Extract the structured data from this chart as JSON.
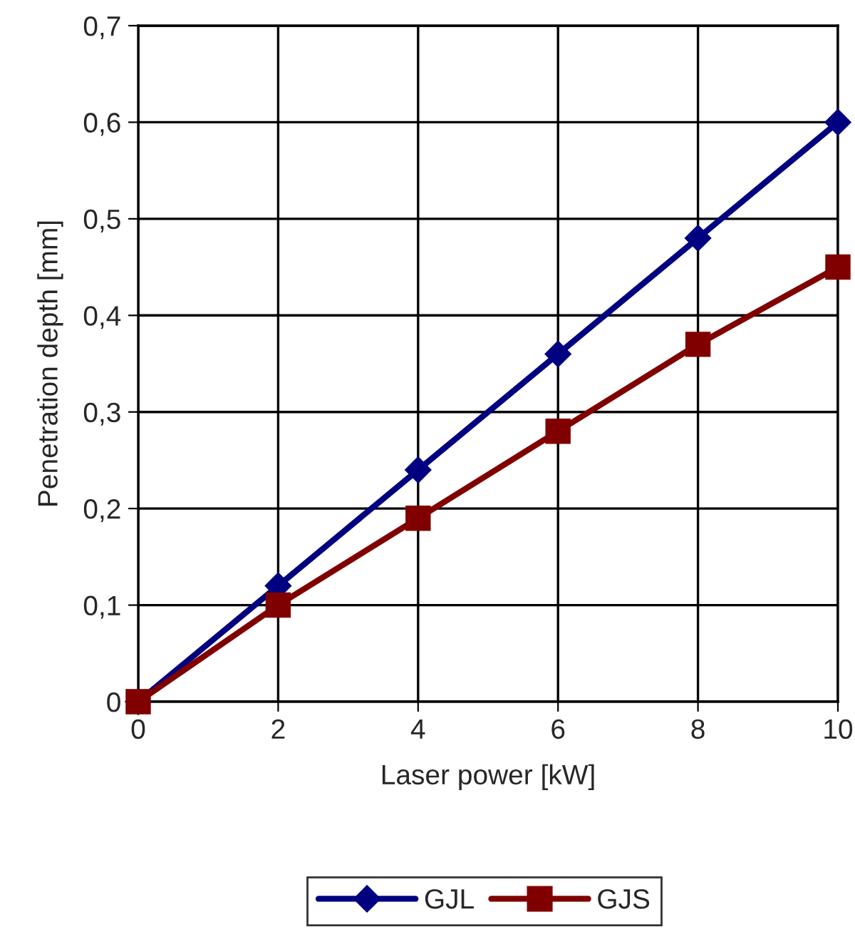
{
  "chart_data": {
    "type": "line",
    "xlabel": "Laser power [kW]",
    "ylabel": "Penetration depth [mm]",
    "x": [
      0,
      2,
      4,
      6,
      8,
      10
    ],
    "series": [
      {
        "name": "GJL",
        "color": "#000080",
        "marker": "diamond",
        "values": [
          0,
          0.12,
          0.24,
          0.36,
          0.48,
          0.6
        ]
      },
      {
        "name": "GJS",
        "color": "#800000",
        "marker": "square",
        "values": [
          0,
          0.1,
          0.19,
          0.28,
          0.37,
          0.45
        ]
      }
    ],
    "xlim": [
      0,
      10
    ],
    "xticks": [
      0,
      2,
      4,
      6,
      8,
      10
    ],
    "ylim": [
      0,
      0.7
    ],
    "yticks": [
      0,
      {
        "value": 0.1,
        "label": "0,1"
      },
      {
        "value": 0.2,
        "label": "0,2"
      },
      {
        "value": 0.3,
        "label": "0,3"
      },
      {
        "value": 0.4,
        "label": "0,4"
      },
      {
        "value": 0.5,
        "label": "0,5"
      },
      {
        "value": 0.6,
        "label": "0,6"
      },
      {
        "value": 0.7,
        "label": "0,7"
      }
    ],
    "grid": true,
    "legend": "bottom",
    "line_style": "solid"
  }
}
